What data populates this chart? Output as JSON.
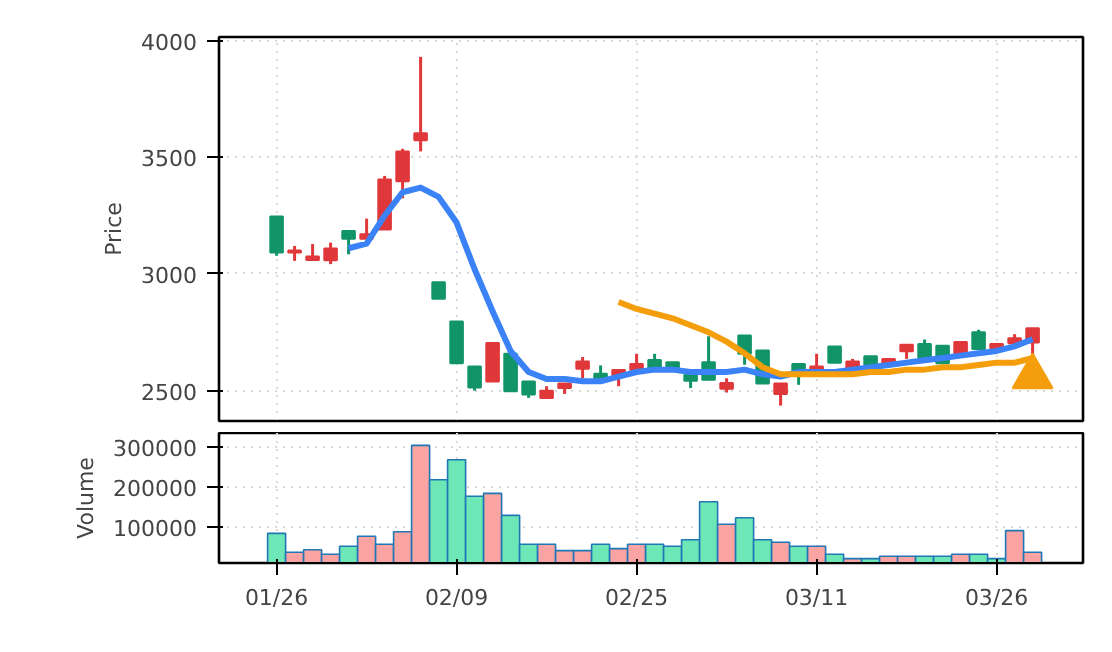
{
  "chart_data": [
    {
      "type": "candlestick",
      "ylabel": "Price",
      "tick_labels": "y",
      "grid": true,
      "categories": [
        "01/26",
        null,
        null,
        null,
        null,
        null,
        null,
        null,
        null,
        null,
        "02/09",
        null,
        null,
        null,
        null,
        null,
        null,
        null,
        null,
        null,
        "02/25",
        null,
        null,
        null,
        null,
        null,
        null,
        null,
        null,
        null,
        "03/11",
        null,
        null,
        null,
        null,
        null,
        null,
        null,
        null,
        null,
        "03/26",
        null,
        null
      ],
      "ylim": [
        2370,
        4015
      ],
      "yticks": [
        2500,
        3000,
        3500,
        4000
      ],
      "ohlc": [
        [
          3246,
          3246,
          3078,
          3092
        ],
        [
          3092,
          3120,
          3056,
          3100
        ],
        [
          3060,
          3128,
          3058,
          3075
        ],
        [
          3059,
          3134,
          3042,
          3109
        ],
        [
          3184,
          3184,
          3084,
          3151
        ],
        [
          3151,
          3237,
          3151,
          3170
        ],
        [
          3190,
          3420,
          3190,
          3405
        ],
        [
          3397,
          3536,
          3324,
          3525
        ],
        [
          3573,
          3930,
          3525,
          3603
        ],
        [
          2964,
          2964,
          2894,
          2894
        ],
        [
          2796,
          2796,
          2617,
          2617
        ],
        [
          2604,
          2604,
          2500,
          2514
        ],
        [
          2539,
          2704,
          2539,
          2704
        ],
        [
          2658,
          2658,
          2497,
          2497
        ],
        [
          2539,
          2539,
          2469,
          2483
        ],
        [
          2469,
          2519,
          2469,
          2500
        ],
        [
          2511,
          2531,
          2486,
          2531
        ],
        [
          2594,
          2644,
          2553,
          2625
        ],
        [
          2572,
          2608,
          2547,
          2547
        ],
        [
          2558,
          2589,
          2519,
          2589
        ],
        [
          2589,
          2658,
          2589,
          2614
        ],
        [
          2631,
          2658,
          2597,
          2597
        ],
        [
          2622,
          2622,
          2592,
          2592
        ],
        [
          2567,
          2567,
          2511,
          2542
        ],
        [
          2622,
          2733,
          2547,
          2547
        ],
        [
          2508,
          2553,
          2492,
          2533
        ],
        [
          2736,
          2736,
          2611,
          2658
        ],
        [
          2672,
          2672,
          2531,
          2531
        ],
        [
          2486,
          2531,
          2436,
          2531
        ],
        [
          2614,
          2614,
          2525,
          2569
        ],
        [
          2575,
          2658,
          2575,
          2603
        ],
        [
          2689,
          2689,
          2619,
          2619
        ],
        [
          2597,
          2636,
          2597,
          2625
        ],
        [
          2647,
          2647,
          2611,
          2611
        ],
        [
          2614,
          2636,
          2614,
          2636
        ],
        [
          2669,
          2697,
          2636,
          2697
        ],
        [
          2700,
          2719,
          2642,
          2642
        ],
        [
          2692,
          2692,
          2617,
          2617
        ],
        [
          2658,
          2708,
          2658,
          2708
        ],
        [
          2750,
          2761,
          2678,
          2678
        ],
        [
          2681,
          2700,
          2681,
          2700
        ],
        [
          2703,
          2742,
          2703,
          2725
        ],
        [
          2706,
          2767,
          2653,
          2767
        ]
      ],
      "colors": [
        "#129469",
        "#e0383a",
        "#e0383a",
        "#e0383a",
        "#129469",
        "#e0383a",
        "#e0383a",
        "#e0383a",
        "#e0383a",
        "#129469",
        "#129469",
        "#129469",
        "#e0383a",
        "#129469",
        "#129469",
        "#e0383a",
        "#e0383a",
        "#e0383a",
        "#129469",
        "#e0383a",
        "#e0383a",
        "#129469",
        "#129469",
        "#129469",
        "#129469",
        "#e0383a",
        "#129469",
        "#129469",
        "#e0383a",
        "#129469",
        "#e0383a",
        "#129469",
        "#e0383a",
        "#129469",
        "#e0383a",
        "#e0383a",
        "#129469",
        "#129469",
        "#e0383a",
        "#129469",
        "#e0383a",
        "#e0383a",
        "#e0383a"
      ],
      "series": [
        {
          "type": "line",
          "color": "#3b82f6",
          "values": [
            null,
            null,
            null,
            null,
            3110,
            3130,
            3250,
            3350,
            3370,
            3330,
            3220,
            3020,
            2840,
            2670,
            2580,
            2550,
            2550,
            2540,
            2540,
            2560,
            2580,
            2590,
            2590,
            2580,
            2580,
            2580,
            2590,
            2570,
            2560,
            2580,
            2580,
            2580,
            2590,
            2600,
            2610,
            2620,
            2630,
            2640,
            2650,
            2660,
            2670,
            2690,
            2720
          ]
        },
        {
          "type": "line",
          "color": "#f59e0b",
          "values": [
            null,
            null,
            null,
            null,
            null,
            null,
            null,
            null,
            null,
            null,
            null,
            null,
            null,
            null,
            null,
            null,
            null,
            null,
            null,
            2880,
            2850,
            2830,
            2810,
            2780,
            2750,
            2710,
            2660,
            2600,
            2570,
            2570,
            2570,
            2570,
            2570,
            2580,
            2580,
            2590,
            2590,
            2600,
            2600,
            2610,
            2620,
            2620,
            2640
          ]
        },
        {
          "type": "scatter",
          "marker": "triangle",
          "color": "#f59e0b",
          "values": [
            null,
            null,
            null,
            null,
            null,
            null,
            null,
            null,
            null,
            null,
            null,
            null,
            null,
            null,
            null,
            null,
            null,
            null,
            null,
            null,
            null,
            null,
            null,
            null,
            null,
            null,
            null,
            null,
            null,
            null,
            null,
            null,
            null,
            null,
            null,
            null,
            null,
            null,
            null,
            null,
            null,
            null,
            2560
          ]
        }
      ]
    },
    {
      "type": "bar",
      "ylabel": "Volume",
      "grid": true,
      "ylim": [
        10000,
        335000
      ],
      "yticks": [
        100000,
        200000,
        300000
      ],
      "values": [
        84000,
        37000,
        43000,
        32000,
        52000,
        77000,
        57000,
        88000,
        304000,
        218000,
        268000,
        177000,
        184000,
        129000,
        57000,
        57000,
        41000,
        41000,
        57000,
        46000,
        57000,
        57000,
        52000,
        68000,
        163000,
        107000,
        123000,
        68000,
        62000,
        52000,
        52000,
        32000,
        21000,
        21000,
        27000,
        27000,
        27000,
        27000,
        32000,
        32000,
        21000,
        91000,
        37000
      ],
      "colors": [
        "#6ee7b7",
        "#f9a3a3",
        "#f9a3a3",
        "#f9a3a3",
        "#6ee7b7",
        "#f9a3a3",
        "#f9a3a3",
        "#f9a3a3",
        "#f9a3a3",
        "#6ee7b7",
        "#6ee7b7",
        "#6ee7b7",
        "#f9a3a3",
        "#6ee7b7",
        "#6ee7b7",
        "#f9a3a3",
        "#f9a3a3",
        "#f9a3a3",
        "#6ee7b7",
        "#f9a3a3",
        "#f9a3a3",
        "#6ee7b7",
        "#6ee7b7",
        "#6ee7b7",
        "#6ee7b7",
        "#f9a3a3",
        "#6ee7b7",
        "#6ee7b7",
        "#f9a3a3",
        "#6ee7b7",
        "#f9a3a3",
        "#6ee7b7",
        "#f9a3a3",
        "#6ee7b7",
        "#f9a3a3",
        "#f9a3a3",
        "#6ee7b7",
        "#6ee7b7",
        "#f9a3a3",
        "#6ee7b7",
        "#6ee7b7",
        "#f9a3a3",
        "#f9a3a3"
      ]
    }
  ]
}
